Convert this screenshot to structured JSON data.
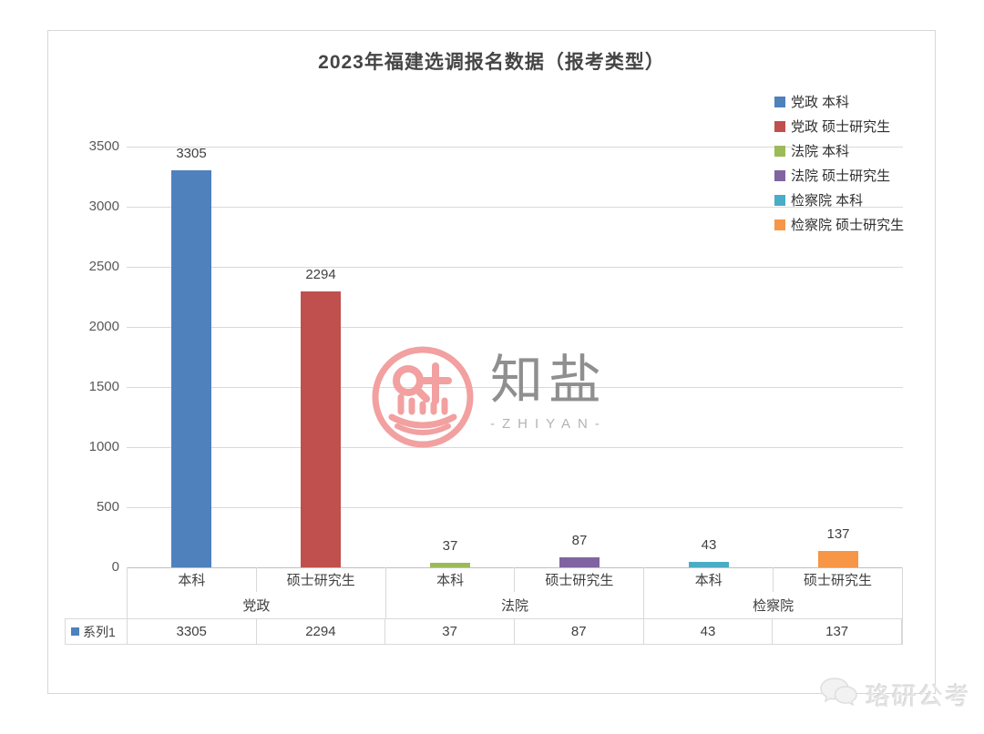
{
  "chart_data": {
    "type": "bar",
    "title": "2023年福建选调报名数据（报考类型）",
    "xlabel": "",
    "ylabel": "",
    "ylim": [
      0,
      3500
    ],
    "y_ticks": [
      0,
      500,
      1000,
      1500,
      2000,
      2500,
      3000,
      3500
    ],
    "grid": true,
    "legend_position": "top-right",
    "categories": [
      "本科",
      "硕士研究生",
      "本科",
      "硕士研究生",
      "本科",
      "硕士研究生"
    ],
    "groups": [
      {
        "name": "党政",
        "categories": [
          "本科",
          "硕士研究生"
        ],
        "values": [
          3305,
          2294
        ]
      },
      {
        "name": "法院",
        "categories": [
          "本科",
          "硕士研究生"
        ],
        "values": [
          37,
          87
        ]
      },
      {
        "name": "检察院",
        "categories": [
          "本科",
          "硕士研究生"
        ],
        "values": [
          43,
          137
        ]
      }
    ],
    "series": [
      {
        "name": "系列1",
        "values": [
          3305,
          2294,
          37,
          87,
          43,
          137
        ]
      }
    ],
    "data_labels": [
      "3305",
      "2294",
      "37",
      "87",
      "43",
      "137"
    ],
    "bar_colors": [
      "#4F81BD",
      "#C0504D",
      "#9BBB59",
      "#8064A2",
      "#4BACC6",
      "#F79646"
    ],
    "legend": [
      {
        "label": "党政 本科",
        "color": "#4F81BD"
      },
      {
        "label": "党政 硕士研究生",
        "color": "#C0504D"
      },
      {
        "label": "法院 本科",
        "color": "#9BBB59"
      },
      {
        "label": "法院 硕士研究生",
        "color": "#8064A2"
      },
      {
        "label": "检察院 本科",
        "color": "#4BACC6"
      },
      {
        "label": "检察院 硕士研究生",
        "color": "#F79646"
      }
    ],
    "table": {
      "row_label": "系列1",
      "row_key_color": "#4F81BD",
      "values": [
        "3305",
        "2294",
        "37",
        "87",
        "43",
        "137"
      ]
    }
  },
  "watermarks": {
    "center_brand": "知盐",
    "center_sub": "-ZHIYAN-",
    "corner": "珞研公考"
  },
  "style_colors": {
    "gridline": "#d9d9d9",
    "axis_line": "#bfbfbf",
    "watermark_pink": "#F2A0A0"
  }
}
